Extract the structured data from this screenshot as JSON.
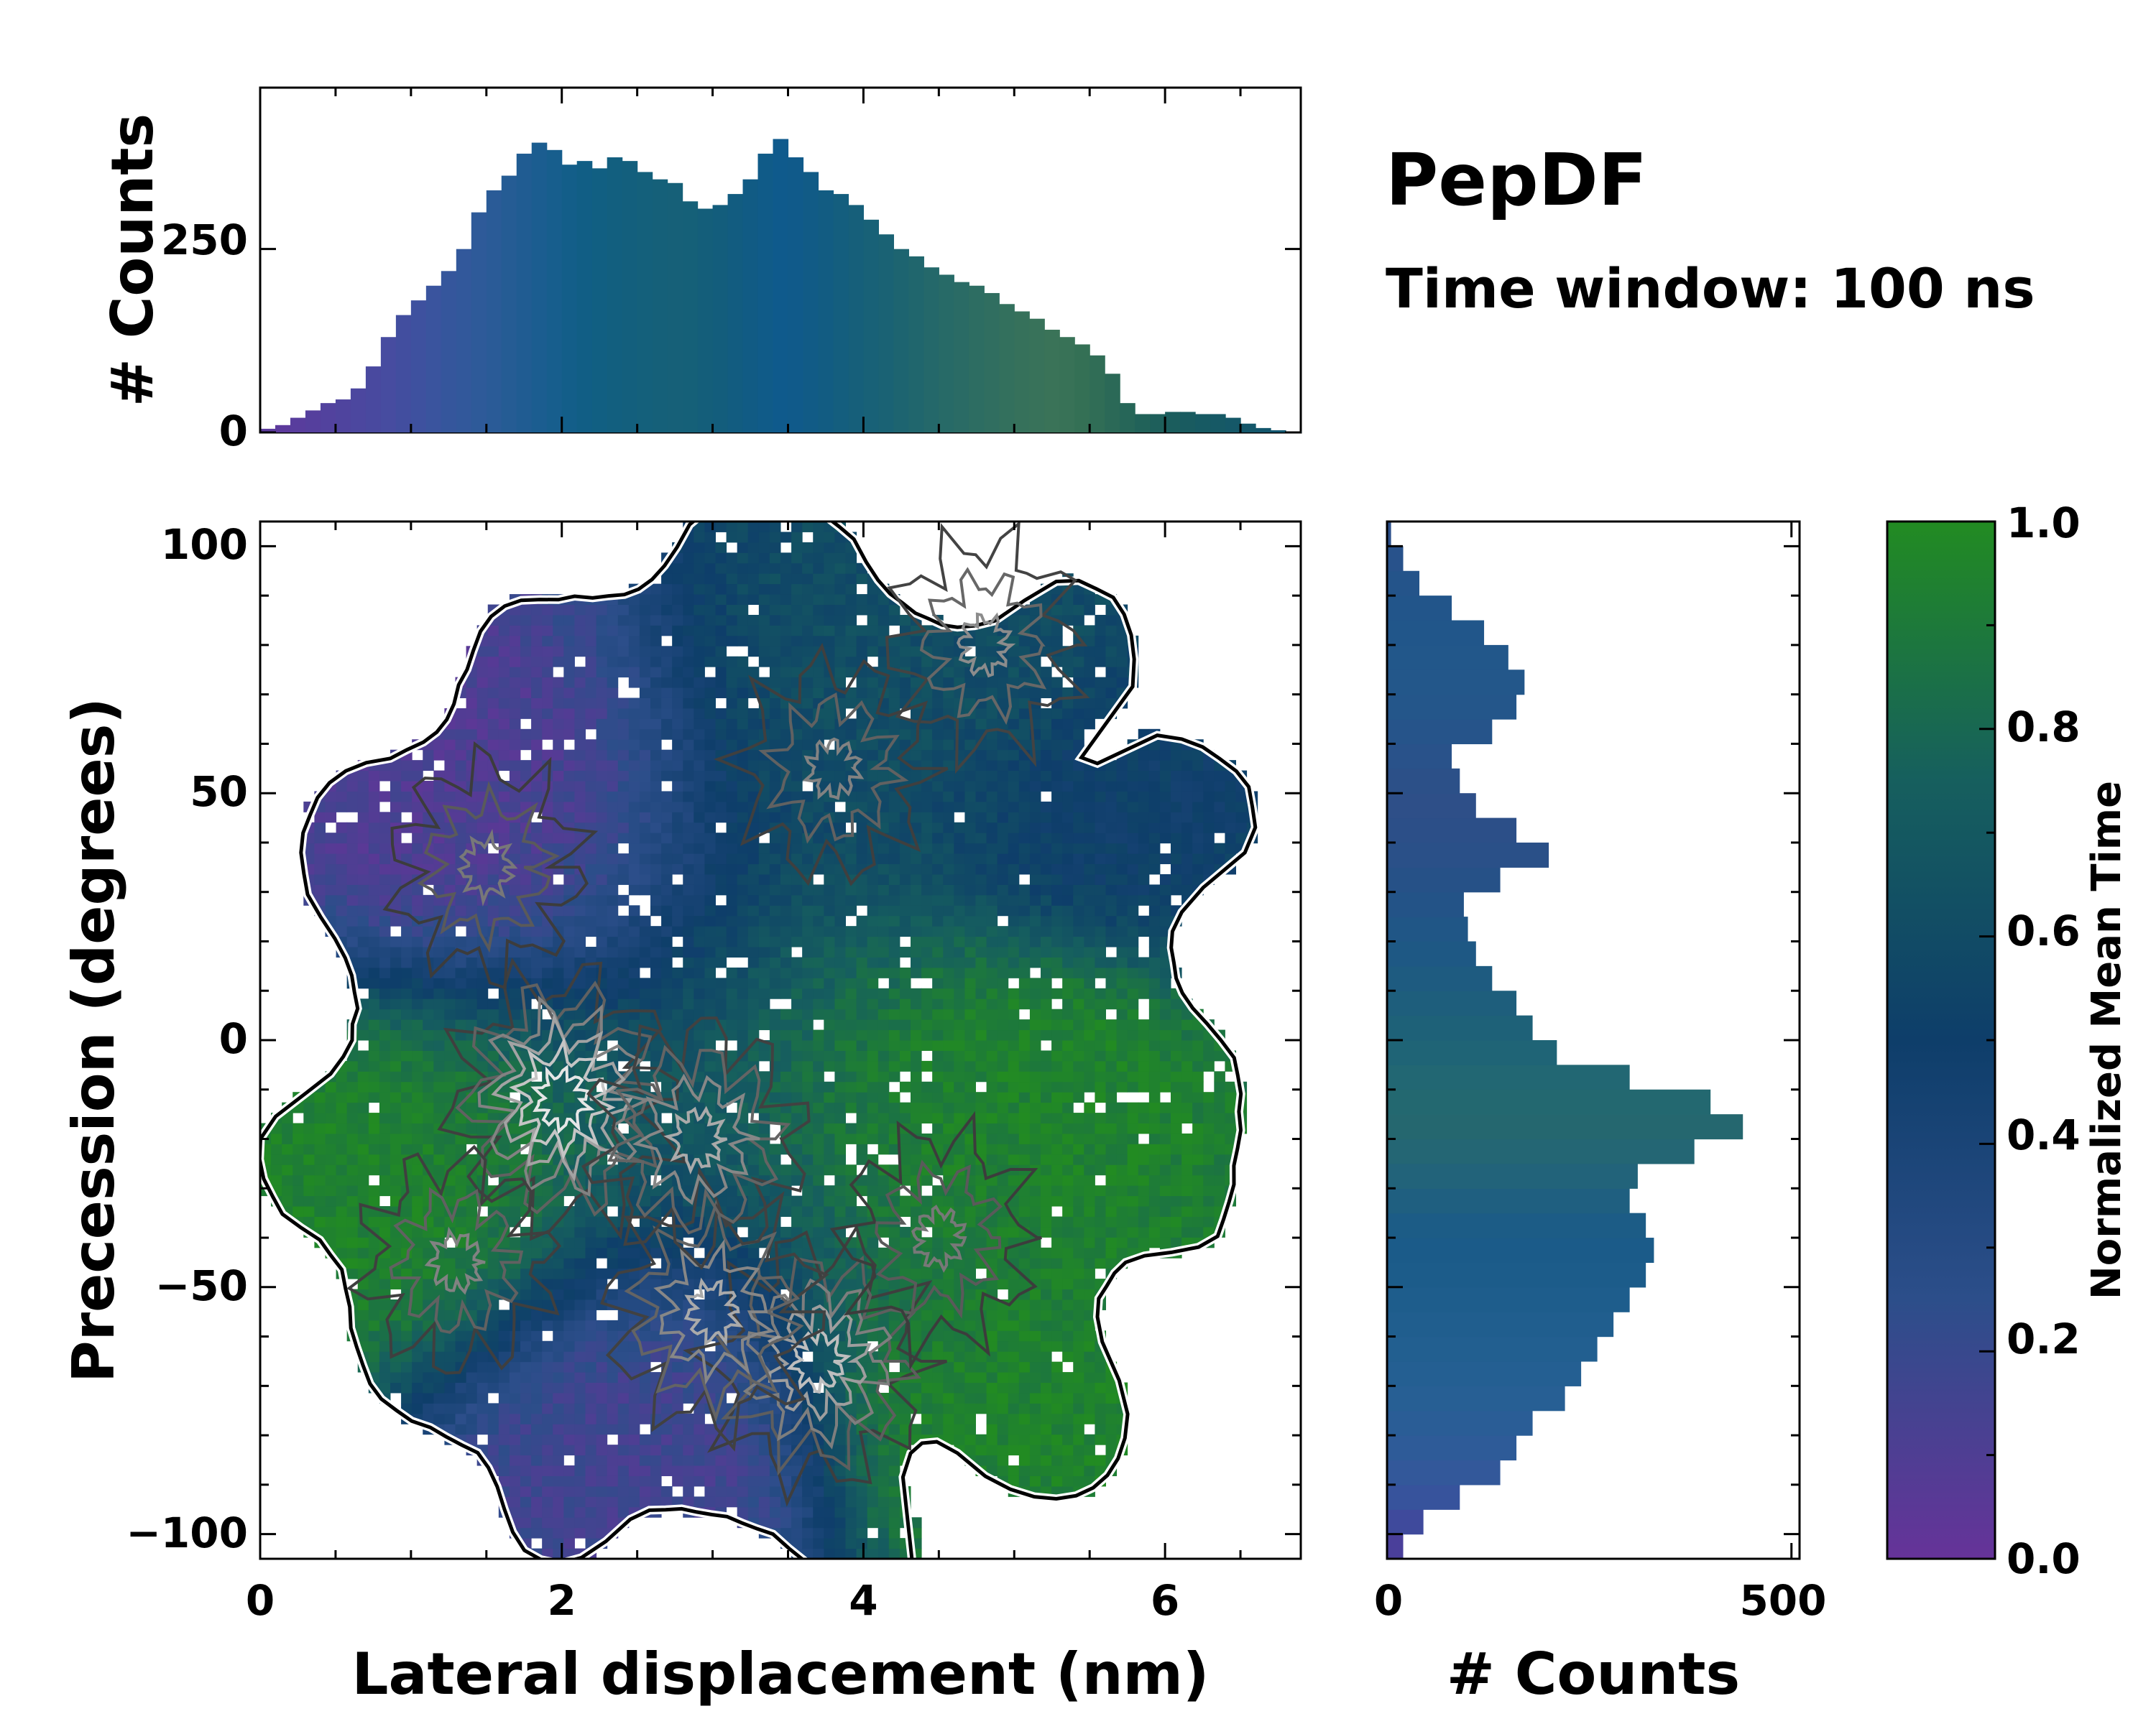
{
  "chart_data": [
    {
      "type": "heatmap",
      "name": "main-2d-histogram",
      "title": "PepDF",
      "subtitle": "Time window: 100 ns",
      "xlabel": "Lateral displacement (nm)",
      "ylabel": "Precession (degrees)",
      "xlim": [
        0,
        6.9
      ],
      "ylim": [
        -105,
        105
      ],
      "xticks": [
        0,
        2,
        4,
        6
      ],
      "yticks": [
        -100,
        -50,
        0,
        50,
        100
      ],
      "xtick_labels": [
        "0",
        "2",
        "4",
        "6"
      ],
      "ytick_labels": [
        "−100",
        "−50",
        "0",
        "50",
        "100"
      ],
      "color_meaning": "Normalized mean time (0 = purple, 1 = green)",
      "density_peaks": [
        {
          "x": 2.0,
          "y": -12,
          "strength": 1.0
        },
        {
          "x": 3.7,
          "y": -65,
          "strength": 0.8
        },
        {
          "x": 3.0,
          "y": -55,
          "strength": 0.7
        },
        {
          "x": 2.9,
          "y": -20,
          "strength": 0.7
        },
        {
          "x": 4.8,
          "y": 80,
          "strength": 0.55
        },
        {
          "x": 3.8,
          "y": 55,
          "strength": 0.5
        },
        {
          "x": 1.5,
          "y": 35,
          "strength": 0.45
        },
        {
          "x": 1.3,
          "y": -45,
          "strength": 0.5
        },
        {
          "x": 4.5,
          "y": -40,
          "strength": 0.45
        }
      ],
      "time_regions": [
        {
          "label": "early (purple)",
          "x": 1.0,
          "y": 55,
          "value": 0.1
        },
        {
          "label": "early (purple)",
          "x": 2.5,
          "y": -90,
          "value": 0.15
        },
        {
          "label": "late (green)",
          "x": 5.3,
          "y": -10,
          "value": 0.95
        },
        {
          "label": "late (green)",
          "x": 5.0,
          "y": -80,
          "value": 0.95
        },
        {
          "label": "late (green)",
          "x": 0.5,
          "y": -30,
          "value": 0.95
        },
        {
          "label": "mid (teal)",
          "x": 4.5,
          "y": 80,
          "value": 0.62
        },
        {
          "label": "mid (blue)",
          "x": 5.8,
          "y": 45,
          "value": 0.5
        }
      ]
    },
    {
      "type": "bar",
      "name": "top-marginal-histogram",
      "xlabel": "",
      "ylabel": "# Counts",
      "xlim": [
        0,
        6.9
      ],
      "ylim": [
        0,
        470
      ],
      "yticks": [
        0,
        250
      ],
      "ytick_labels": [
        "0",
        "250"
      ],
      "x": [
        0.05,
        0.15,
        0.25,
        0.35,
        0.45,
        0.55,
        0.65,
        0.75,
        0.85,
        0.95,
        1.05,
        1.15,
        1.25,
        1.35,
        1.45,
        1.55,
        1.65,
        1.75,
        1.85,
        1.95,
        2.05,
        2.15,
        2.25,
        2.35,
        2.45,
        2.55,
        2.65,
        2.75,
        2.85,
        2.95,
        3.05,
        3.15,
        3.25,
        3.35,
        3.45,
        3.55,
        3.65,
        3.75,
        3.85,
        3.95,
        4.05,
        4.15,
        4.25,
        4.35,
        4.45,
        4.55,
        4.65,
        4.75,
        4.85,
        4.95,
        5.05,
        5.15,
        5.25,
        5.35,
        5.45,
        5.55,
        5.65,
        5.75,
        5.85,
        5.95,
        6.05,
        6.15,
        6.25,
        6.35,
        6.45,
        6.55,
        6.65,
        6.75,
        6.85
      ],
      "values": [
        5,
        10,
        20,
        30,
        40,
        45,
        60,
        90,
        130,
        160,
        180,
        200,
        220,
        250,
        300,
        330,
        350,
        380,
        395,
        385,
        365,
        370,
        360,
        375,
        370,
        355,
        345,
        340,
        315,
        305,
        310,
        325,
        345,
        380,
        400,
        375,
        355,
        330,
        325,
        310,
        290,
        270,
        250,
        240,
        225,
        215,
        205,
        200,
        190,
        175,
        165,
        155,
        140,
        130,
        120,
        105,
        80,
        40,
        25,
        25,
        28,
        28,
        25,
        25,
        20,
        12,
        6,
        3,
        1
      ],
      "colors": [
        "#5c3a9c",
        "#5c3a9c",
        "#583d9d",
        "#553f9d",
        "#52429e",
        "#4f449e",
        "#4c479f",
        "#49499f",
        "#474ca0",
        "#424e9f",
        "#3e519f",
        "#3a549e",
        "#35569c",
        "#32589b",
        "#2e5a99",
        "#2a5b97",
        "#255c94",
        "#205c92",
        "#1b5d90",
        "#175e8d",
        "#135e89",
        "#115e85",
        "#115f82",
        "#125f7f",
        "#135f7d",
        "#14607b",
        "#156079",
        "#166078",
        "#156078",
        "#145e7a",
        "#135d7c",
        "#125c80",
        "#115b84",
        "#105b88",
        "#0f5a8c",
        "#105a8a",
        "#115b86",
        "#125c82",
        "#145e7e",
        "#165f7a",
        "#186177",
        "#1a6274",
        "#1d6470",
        "#20666d",
        "#24686a",
        "#276a67",
        "#2a6b65",
        "#2d6d62",
        "#306e60",
        "#33705d",
        "#36715b",
        "#38725a",
        "#3a7358",
        "#387257",
        "#347055",
        "#306d56",
        "#2b6957",
        "#266658",
        "#216259",
        "#1e5f5b",
        "#1b5d5d",
        "#195b60",
        "#175a63",
        "#165965",
        "#155868",
        "#14576a",
        "#13566c",
        "#12556e",
        "#115570"
      ]
    },
    {
      "type": "bar",
      "orientation": "horizontal",
      "name": "right-marginal-histogram",
      "xlabel": "# Counts",
      "ylabel": "",
      "xlim": [
        0,
        510
      ],
      "ylim": [
        -105,
        105
      ],
      "xticks": [
        0,
        500
      ],
      "xtick_labels": [
        "0",
        "500"
      ],
      "y": [
        -102.5,
        -97.5,
        -92.5,
        -87.5,
        -82.5,
        -77.5,
        -72.5,
        -67.5,
        -62.5,
        -57.5,
        -52.5,
        -47.5,
        -42.5,
        -37.5,
        -32.5,
        -27.5,
        -22.5,
        -17.5,
        -12.5,
        -7.5,
        -2.5,
        2.5,
        7.5,
        12.5,
        17.5,
        22.5,
        27.5,
        32.5,
        37.5,
        42.5,
        47.5,
        52.5,
        57.5,
        62.5,
        67.5,
        72.5,
        77.5,
        82.5,
        87.5,
        92.5,
        97.5,
        102.5
      ],
      "values": [
        20,
        45,
        90,
        140,
        160,
        180,
        220,
        240,
        260,
        280,
        300,
        320,
        330,
        320,
        300,
        310,
        380,
        440,
        400,
        300,
        210,
        180,
        160,
        130,
        110,
        100,
        95,
        140,
        200,
        160,
        110,
        90,
        80,
        130,
        160,
        170,
        150,
        120,
        80,
        40,
        20,
        5
      ],
      "colors": [
        "#4a3f9a",
        "#3f4a9c",
        "#37539c",
        "#33589a",
        "#2e5b98",
        "#2a5d96",
        "#275f94",
        "#245f92",
        "#225f90",
        "#205e8e",
        "#1e5d8c",
        "#1c5c8a",
        "#1b5b89",
        "#1c5c86",
        "#1f5f80",
        "#22637a",
        "#246674",
        "#25676f",
        "#236870",
        "#226773",
        "#1f6476",
        "#1e6178",
        "#1e5e7c",
        "#1e5b80",
        "#1e5884",
        "#205686",
        "#235387",
        "#265187",
        "#2a5088",
        "#2c4f88",
        "#2e4f88",
        "#2c5088",
        "#29528a",
        "#26548a",
        "#24568a",
        "#23578a",
        "#22578a",
        "#21568a",
        "#22558a",
        "#24548a",
        "#28528b",
        "#2c508b"
      ]
    },
    {
      "type": "colorbar",
      "name": "colorbar",
      "label": "Normalized Mean Time",
      "range": [
        0.0,
        1.0
      ],
      "ticks": [
        0.0,
        0.2,
        0.4,
        0.6,
        0.8,
        1.0
      ],
      "tick_labels": [
        "0.0",
        "0.2",
        "0.4",
        "0.6",
        "0.8",
        "1.0"
      ],
      "colormap": [
        "#663399",
        "#2c4e8a",
        "#0e3e6a",
        "#165f5e",
        "#228b22"
      ]
    }
  ]
}
